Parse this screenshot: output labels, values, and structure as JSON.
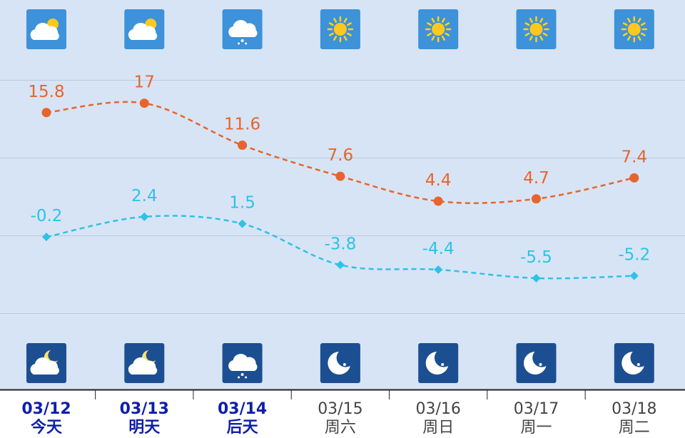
{
  "chart_data": {
    "type": "line",
    "categories": [
      "03/12",
      "03/13",
      "03/14",
      "03/15",
      "03/16",
      "03/17",
      "03/18"
    ],
    "day_labels": [
      "今天",
      "明天",
      "后天",
      "周六",
      "周日",
      "周一",
      "周二"
    ],
    "series": [
      {
        "color": "#e8642c",
        "marker": "circle",
        "values": [
          15.8,
          17,
          11.6,
          7.6,
          4.4,
          4.7,
          7.4
        ]
      },
      {
        "color": "#2cc3e6",
        "marker": "diamond",
        "values": [
          -0.2,
          2.4,
          1.5,
          -3.8,
          -4.4,
          -5.5,
          -5.2
        ]
      }
    ],
    "ylim": [
      -20,
      30
    ],
    "yticks": [
      -10,
      0,
      10,
      20
    ],
    "grid": true
  }
}
